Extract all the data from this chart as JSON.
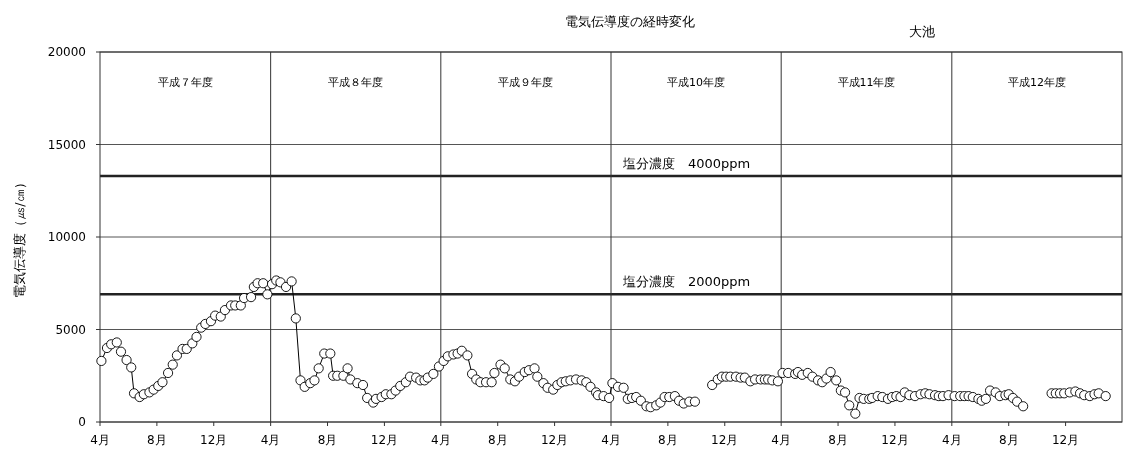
{
  "chart_data": {
    "type": "line",
    "title": "電気伝導度の経時変化",
    "subtitle": "大池",
    "ylabel": "電気伝導度（㎲/㎝）",
    "xlim": [
      "1995-04-01",
      "2001-04-01"
    ],
    "ylim": [
      0,
      20000
    ],
    "yticks": [
      0,
      5000,
      10000,
      15000,
      20000
    ],
    "xticks": [
      {
        "value": "1995-04-01",
        "label": "4月"
      },
      {
        "value": "1995-08-01",
        "label": "8月"
      },
      {
        "value": "1995-12-01",
        "label": "12月"
      },
      {
        "value": "1996-04-01",
        "label": "4月"
      },
      {
        "value": "1996-08-01",
        "label": "8月"
      },
      {
        "value": "1996-12-01",
        "label": "12月"
      },
      {
        "value": "1997-04-01",
        "label": "4月"
      },
      {
        "value": "1997-08-01",
        "label": "8月"
      },
      {
        "value": "1997-12-01",
        "label": "12月"
      },
      {
        "value": "1998-04-01",
        "label": "4月"
      },
      {
        "value": "1998-08-01",
        "label": "8月"
      },
      {
        "value": "1998-12-01",
        "label": "12月"
      },
      {
        "value": "1999-04-01",
        "label": "4月"
      },
      {
        "value": "1999-08-01",
        "label": "8月"
      },
      {
        "value": "1999-12-01",
        "label": "12月"
      },
      {
        "value": "2000-04-01",
        "label": "4月"
      },
      {
        "value": "2000-08-01",
        "label": "8月"
      },
      {
        "value": "2000-12-01",
        "label": "12月"
      }
    ],
    "grid": "y",
    "marker": "circle",
    "line_style": "solid",
    "ref_lines": [
      {
        "axis": "y",
        "value": 13300,
        "label": "塩分濃度　4000ppm",
        "color": "#222222"
      },
      {
        "axis": "y",
        "value": 6900,
        "label": "塩分濃度　2000ppm",
        "color": "#222222"
      },
      {
        "axis": "x",
        "value": "1996-04-01",
        "color": "#333333"
      },
      {
        "axis": "x",
        "value": "1997-04-01",
        "color": "#333333"
      },
      {
        "axis": "x",
        "value": "1998-04-01",
        "color": "#333333"
      },
      {
        "axis": "x",
        "value": "1999-04-01",
        "color": "#333333"
      },
      {
        "axis": "x",
        "value": "2000-04-01",
        "color": "#333333"
      }
    ],
    "annotations": [
      "平成７年度",
      "平成８年度",
      "平成９年度",
      "平成10年度",
      "平成11年度",
      "平成12年度"
    ],
    "series": [
      {
        "color": "#000000",
        "x": [
          "1995-04-04",
          "1995-04-16",
          "1995-04-25",
          "1995-05-07",
          "1995-05-16",
          "1995-05-28",
          "1995-06-07",
          "1995-06-13",
          "1995-06-25",
          "1995-07-04",
          "1995-07-16",
          "1995-07-25",
          "1995-08-04",
          "1995-08-13",
          "1995-08-25",
          "1995-09-04",
          "1995-09-13",
          "1995-09-25",
          "1995-10-04",
          "1995-10-16",
          "1995-10-25",
          "1995-11-04",
          "1995-11-13",
          "1995-11-25",
          "1995-12-04",
          "1995-12-16",
          "1995-12-25",
          "1996-01-07",
          "1996-01-16",
          "1996-01-28",
          "1996-02-04",
          "1996-02-19",
          "1996-02-25",
          "1996-03-04",
          "1996-03-16",
          "1996-03-25",
          "1996-04-04",
          "1996-04-13",
          "1996-04-22",
          "1996-05-04",
          "1996-05-16",
          "1996-05-25",
          "1996-06-04",
          "1996-06-13",
          "1996-06-25",
          "1996-07-04",
          "1996-07-13",
          "1996-07-25",
          "1996-08-07",
          "1996-08-13",
          "1996-08-22",
          "1996-09-04",
          "1996-09-13",
          "1996-09-19",
          "1996-10-04",
          "1996-10-16",
          "1996-10-25",
          "1996-11-07",
          "1996-11-13",
          "1996-11-25",
          "1996-12-04",
          "1996-12-16",
          "1996-12-25",
          "1997-01-04",
          "1997-01-16",
          "1997-01-25",
          "1997-02-07",
          "1997-02-16",
          "1997-02-25",
          "1997-03-04",
          "1997-03-16",
          "1997-03-28",
          "1997-04-07",
          "1997-04-16",
          "1997-04-28",
          "1997-05-07",
          "1997-05-16",
          "1997-05-28",
          "1997-06-07",
          "1997-06-16",
          "1997-06-25",
          "1997-07-07",
          "1997-07-19",
          "1997-07-25",
          "1997-08-07",
          "1997-08-16",
          "1997-08-28",
          "1997-09-07",
          "1997-09-16",
          "1997-09-28",
          "1997-10-07",
          "1997-10-19",
          "1997-10-25",
          "1997-11-07",
          "1997-11-16",
          "1997-11-28",
          "1997-12-07",
          "1997-12-16",
          "1997-12-25",
          "1998-01-04",
          "1998-01-16",
          "1998-01-28",
          "1998-02-07",
          "1998-02-16",
          "1998-02-28",
          "1998-03-04",
          "1998-03-16",
          "1998-03-28",
          "1998-04-04",
          "1998-04-16",
          "1998-04-28",
          "1998-05-07",
          "1998-05-16",
          "1998-05-25",
          "1998-06-04",
          "1998-06-16",
          "1998-06-25",
          "1998-07-07",
          "1998-07-16",
          "1998-07-25",
          "1998-08-04",
          "1998-08-16",
          "1998-08-25",
          "1998-09-04",
          "1998-09-16",
          "1998-09-28",
          "1998-10-16",
          "1998-11-04",
          "1998-11-16",
          "1998-11-25",
          "1998-12-04",
          "1998-12-13",
          "1998-12-25",
          "1999-01-04",
          "1999-01-13",
          "1999-01-25",
          "1999-02-04",
          "1999-02-16",
          "1999-02-25",
          "1999-03-04",
          "1999-03-13",
          "1999-03-25",
          "1999-04-04",
          "1999-04-16",
          "1999-05-01",
          "1999-05-07",
          "1999-05-16",
          "1999-05-28",
          "1999-06-07",
          "1999-06-19",
          "1999-06-28",
          "1999-07-07",
          "1999-07-16",
          "1999-07-28",
          "1999-08-07",
          "1999-08-16",
          "1999-08-25",
          "1999-09-07",
          "1999-09-16",
          "1999-09-25",
          "1999-10-07",
          "1999-10-13",
          "1999-10-25",
          "1999-11-04",
          "1999-11-16",
          "1999-11-25",
          "1999-12-04",
          "1999-12-13",
          "1999-12-22",
          "2000-01-01",
          "2000-01-13",
          "2000-01-25",
          "2000-02-04",
          "2000-02-13",
          "2000-02-25",
          "2000-03-04",
          "2000-03-13",
          "2000-03-25",
          "2000-04-07",
          "2000-04-19",
          "2000-04-28",
          "2000-05-07",
          "2000-05-16",
          "2000-05-28",
          "2000-06-04",
          "2000-06-13",
          "2000-06-22",
          "2000-07-04",
          "2000-07-13",
          "2000-07-25",
          "2000-08-01",
          "2000-08-10",
          "2000-08-19",
          "2000-09-01",
          "2000-10-01",
          "2000-11-01",
          "2000-11-10",
          "2000-11-19",
          "2000-11-28",
          "2000-12-10",
          "2000-12-22",
          "2001-01-01",
          "2001-01-10",
          "2001-01-22",
          "2001-02-01",
          "2001-02-10",
          "2001-02-25"
        ],
        "values": [
          3300,
          4000,
          4200,
          4300,
          3800,
          3350,
          2950,
          1550,
          1350,
          1500,
          1600,
          1750,
          1950,
          2150,
          2650,
          3100,
          3600,
          3950,
          3950,
          4250,
          4600,
          5100,
          5300,
          5450,
          5750,
          5700,
          6050,
          6300,
          6300,
          6300,
          6700,
          6750,
          7300,
          7500,
          7500,
          6900,
          7450,
          7650,
          7550,
          7300,
          7600,
          5600,
          2250,
          1900,
          2100,
          2250,
          2900,
          3700,
          3700,
          2500,
          2500,
          2500,
          2900,
          2300,
          2100,
          2000,
          1300,
          1050,
          1250,
          1350,
          1500,
          1500,
          1700,
          1950,
          2150,
          2450,
          2400,
          2250,
          2250,
          2400,
          2600,
          3000,
          3300,
          3550,
          3650,
          3700,
          3850,
          3600,
          2600,
          2300,
          2150,
          2150,
          2150,
          2650,
          3100,
          2900,
          2300,
          2200,
          2450,
          2700,
          2800,
          2900,
          2450,
          2100,
          1850,
          1750,
          2000,
          2150,
          2200,
          2250,
          2300,
          2250,
          2150,
          1900,
          1600,
          1450,
          1400,
          1300,
          2100,
          1900,
          1850,
          1250,
          1300,
          1350,
          1150,
          850,
          800,
          900,
          1050,
          1350,
          1350,
          1400,
          1150,
          1000,
          1100,
          1100,
          null,
          2000,
          2300,
          2450,
          2450,
          2450,
          2450,
          2400,
          2400,
          2200,
          2300,
          2300,
          2300,
          2300,
          2250,
          2200,
          2650,
          2650,
          2600,
          2700,
          2550,
          2650,
          2450,
          2250,
          2150,
          2350,
          2700,
          2250,
          1700,
          1600,
          900,
          450,
          1300,
          1250,
          1250,
          1300,
          1400,
          1350,
          1250,
          1350,
          1400,
          1350,
          1600,
          1450,
          1400,
          1500,
          1550,
          1500,
          1450,
          1400,
          1400,
          1450,
          1400,
          1400,
          1400,
          1400,
          1350,
          1250,
          1150,
          1250,
          1700,
          1600,
          1400,
          1450,
          1500,
          1300,
          1100,
          850,
          null,
          1550,
          1550,
          1550,
          1550,
          1600,
          1650,
          1550,
          1450,
          1400,
          1500,
          1550,
          1400
        ]
      }
    ]
  }
}
